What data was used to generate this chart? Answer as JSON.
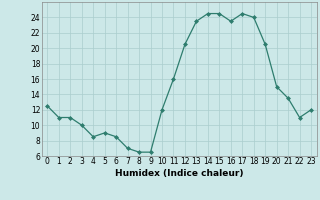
{
  "x": [
    0,
    1,
    2,
    3,
    4,
    5,
    6,
    7,
    8,
    9,
    10,
    11,
    12,
    13,
    14,
    15,
    16,
    17,
    18,
    19,
    20,
    21,
    22,
    23
  ],
  "y": [
    12.5,
    11.0,
    11.0,
    10.0,
    8.5,
    9.0,
    8.5,
    7.0,
    6.5,
    6.5,
    12.0,
    16.0,
    20.5,
    23.5,
    24.5,
    24.5,
    23.5,
    24.5,
    24.0,
    20.5,
    15.0,
    13.5,
    11.0,
    12.0
  ],
  "xlabel": "Humidex (Indice chaleur)",
  "xlim": [
    -0.5,
    23.5
  ],
  "ylim": [
    6,
    26
  ],
  "yticks": [
    6,
    8,
    10,
    12,
    14,
    16,
    18,
    20,
    22,
    24
  ],
  "xticks": [
    0,
    1,
    2,
    3,
    4,
    5,
    6,
    7,
    8,
    9,
    10,
    11,
    12,
    13,
    14,
    15,
    16,
    17,
    18,
    19,
    20,
    21,
    22,
    23
  ],
  "line_color": "#2e7d6e",
  "marker": "D",
  "marker_size": 2.0,
  "line_width": 0.9,
  "bg_color": "#cce8e8",
  "grid_color": "#aacece",
  "label_fontsize": 6.5,
  "tick_fontsize": 5.5
}
